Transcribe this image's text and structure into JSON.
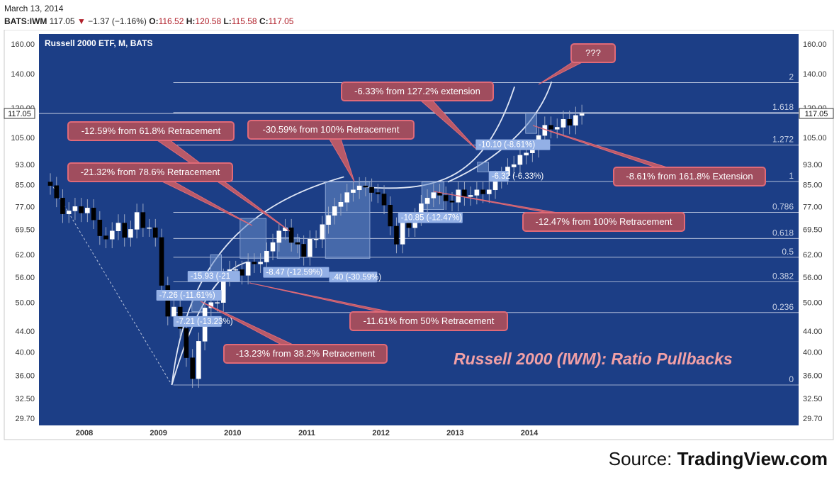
{
  "header": {
    "date": "March 13, 2014",
    "symbol": "BATS:IWM",
    "last": "117.05",
    "change": "−1.37 (−1.16%)",
    "o_label": "O:",
    "o": "116.52",
    "h_label": "H:",
    "h": "120.58",
    "l_label": "L:",
    "l": "115.58",
    "c_label": "C:",
    "c": "117.05"
  },
  "chart_data": {
    "type": "candlestick",
    "title": "Russell 2000 ETF, M, BATS",
    "watermark": "Russell 2000 (IWM): Ratio Pullbacks",
    "y_scale": "log",
    "ylim": [
      27.5,
      170
    ],
    "y_ticks": [
      "160.00",
      "140.00",
      "120.00",
      "105.00",
      "93.00",
      "85.00",
      "77.00",
      "69.50",
      "62.00",
      "56.00",
      "50.00",
      "44.00",
      "40.00",
      "36.00",
      "32.50",
      "29.70"
    ],
    "x_ticks": [
      "2008",
      "2009",
      "2010",
      "2011",
      "2012",
      "2013",
      "2014"
    ],
    "xlim": [
      "2007-06",
      "2014-12"
    ],
    "last_price_label": "117.05",
    "last_price": 117.05,
    "fib_levels": [
      {
        "label": "2",
        "value": 134.5
      },
      {
        "label": "1.618",
        "value": 117.5
      },
      {
        "label": "1.272",
        "value": 101.5
      },
      {
        "label": "1",
        "value": 86.2
      },
      {
        "label": "0.786",
        "value": 75.0
      },
      {
        "label": "0.618",
        "value": 66.7
      },
      {
        "label": "0.5",
        "value": 61.3
      },
      {
        "label": "0.382",
        "value": 54.9
      },
      {
        "label": "0.236",
        "value": 47.8
      },
      {
        "label": "0",
        "value": 34.5
      }
    ],
    "monthly_closes": [
      84.6,
      80.0,
      74.5,
      75.5,
      77.0,
      74.8,
      76.5,
      72.5,
      67.5,
      66.5,
      69.0,
      71.5,
      67.0,
      69.5,
      75.0,
      70.0,
      70.0,
      67.0,
      54.0,
      47.0,
      49.0,
      44.5,
      39.0,
      35.5,
      42.0,
      48.8,
      50.0,
      50.0,
      56.0,
      58.0,
      58.0,
      56.5,
      60.0,
      59.5,
      60.0,
      63.0,
      65.5,
      69.0,
      70.0,
      65.5,
      65.0,
      61.5,
      66.5,
      66.5,
      71.0,
      74.0,
      77.0,
      78.5,
      82.0,
      83.0,
      84.5,
      84.0,
      82.0,
      81.5,
      77.5,
      70.5,
      65.0,
      72.0,
      70.0,
      73.5,
      78.0,
      80.0,
      82.0,
      81.0,
      79.0,
      78.5,
      83.0,
      80.5,
      81.0,
      83.0,
      81.5,
      83.0,
      87.0,
      88.5,
      92.0,
      93.0,
      97.0,
      98.0,
      100.0,
      106.0,
      111.0,
      109.0,
      110.0,
      114.0,
      111.0,
      116.0,
      117.05
    ],
    "callouts": [
      {
        "text": "???"
      },
      {
        "text": "-6.33% from 127.2% extension"
      },
      {
        "text": "-12.59% from 61.8% Retracement"
      },
      {
        "text": "-30.59% from 100% Retracement"
      },
      {
        "text": "-21.32% from 78.6% Retracement"
      },
      {
        "text": "-8.61% from 161.8% Extension"
      },
      {
        "text": "-12.47% from 100% Retracement"
      },
      {
        "text": "-11.61% from 50% Retracement"
      },
      {
        "text": "-13.23% from 38.2% Retracement"
      }
    ],
    "measure_labels": [
      {
        "text": "-10.10 (-8.61%)"
      },
      {
        "text": "-6.32 (-6.33%)"
      },
      {
        "text": "-10.85 (-12.47%)"
      },
      {
        "text": ".40 (-30.59%)"
      },
      {
        "text": "-8.47 (-12.59%)"
      },
      {
        "text": "-15.93 (-21"
      },
      {
        "text": "-7.26 (-11.61%)"
      },
      {
        "text": "-7.21 (-13.23%)"
      }
    ]
  },
  "footer": {
    "source_label": "Source:",
    "source_name": "TradingView.com"
  }
}
